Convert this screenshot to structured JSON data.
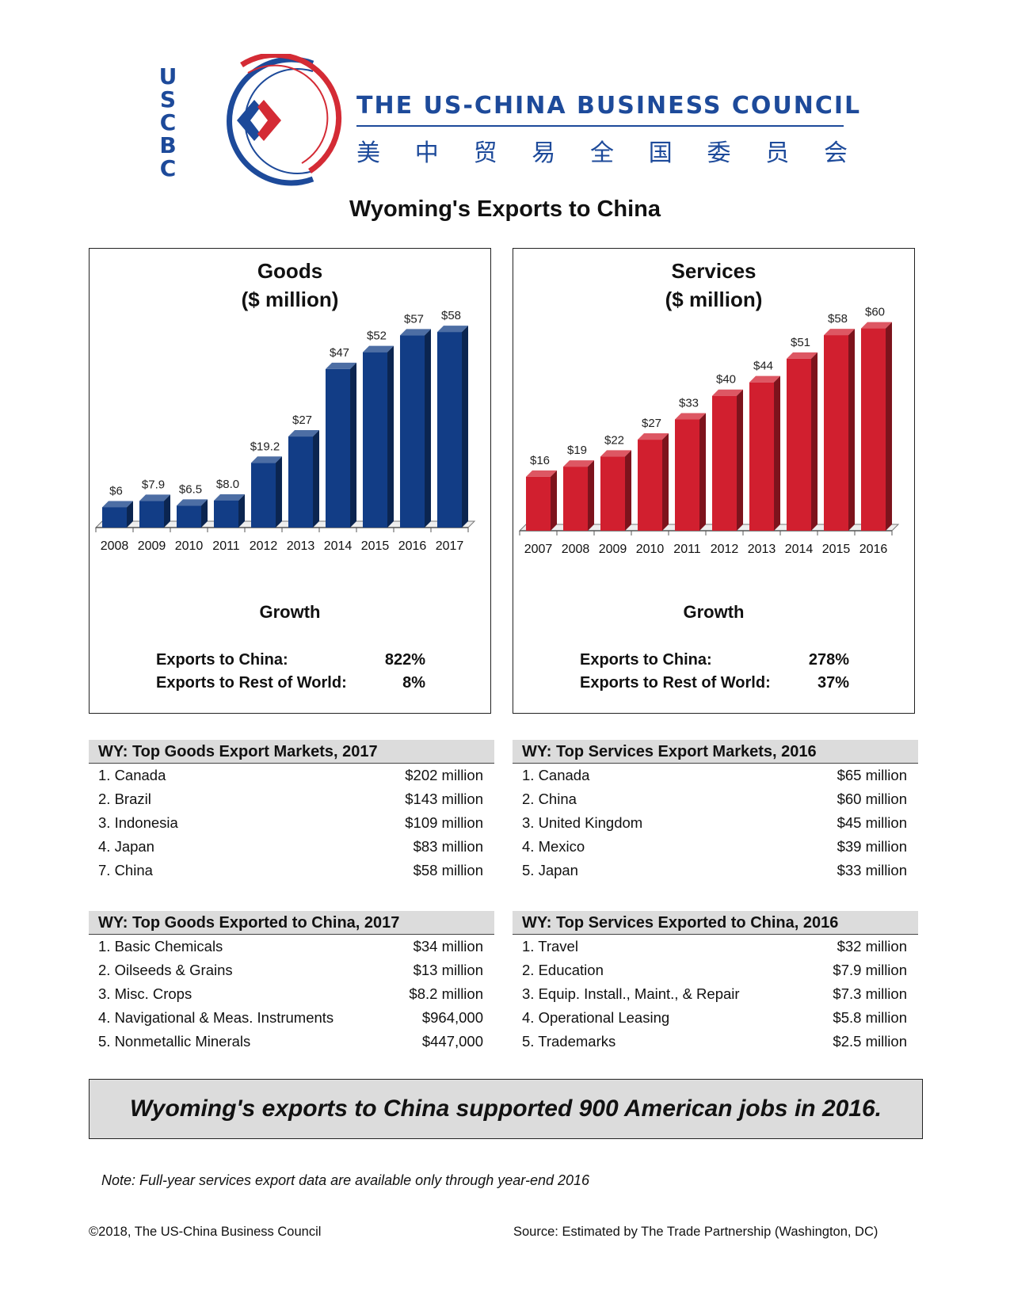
{
  "header": {
    "logo_letters": [
      "U",
      "S",
      "C",
      "B",
      "C"
    ],
    "council_name": "THE US-CHINA BUSINESS COUNCIL",
    "council_name_cn": [
      "美",
      "中",
      "贸",
      "易",
      "全",
      "国",
      "委",
      "员",
      "会"
    ],
    "colors": {
      "brand_blue": "#1d4a9a",
      "brand_red": "#d42b35"
    }
  },
  "title": "Wyoming's Exports to China",
  "goods": {
    "title_line1": "Goods",
    "title_line2": "($ million)",
    "growth_title": "Growth",
    "growth": [
      {
        "label": "Exports to China:",
        "value": "822%"
      },
      {
        "label": "Exports to Rest of World:",
        "value": "8%"
      }
    ]
  },
  "services": {
    "title_line1": "Services",
    "title_line2": "($ million)",
    "growth_title": "Growth",
    "growth": [
      {
        "label": "Exports to China:",
        "value": "278%"
      },
      {
        "label": "Exports to Rest of World:",
        "value": "37%"
      }
    ]
  },
  "chart_data": [
    {
      "type": "bar",
      "title": "Goods ($ million)",
      "categories": [
        "2008",
        "2009",
        "2010",
        "2011",
        "2012",
        "2013",
        "2014",
        "2015",
        "2016",
        "2017"
      ],
      "values": [
        6,
        7.9,
        6.5,
        8.0,
        19.2,
        27,
        47,
        52,
        57,
        58
      ],
      "data_labels": [
        "$6",
        "$7.9",
        "$6.5",
        "$8.0",
        "$19.2",
        "$27",
        "$47",
        "$52",
        "$57",
        "$58"
      ],
      "ylim": [
        0,
        70
      ],
      "grid": false,
      "color": "#123d86"
    },
    {
      "type": "bar",
      "title": "Services ($ million)",
      "categories": [
        "2007",
        "2008",
        "2009",
        "2010",
        "2011",
        "2012",
        "2013",
        "2014",
        "2015",
        "2016"
      ],
      "values": [
        16,
        19,
        22,
        27,
        33,
        40,
        44,
        51,
        58,
        60
      ],
      "data_labels": [
        "$16",
        "$19",
        "$22",
        "$27",
        "$33",
        "$40",
        "$44",
        "$51",
        "$58",
        "$60"
      ],
      "ylim": [
        0,
        70
      ],
      "grid": false,
      "color": "#d11f2f"
    }
  ],
  "tables": {
    "goods_markets": {
      "heading": "WY: Top Goods Export Markets, 2017",
      "rows": [
        {
          "name": "1. Canada",
          "amount": "$202 million"
        },
        {
          "name": "2. Brazil",
          "amount": "$143 million"
        },
        {
          "name": "3. Indonesia",
          "amount": "$109 million"
        },
        {
          "name": "4. Japan",
          "amount": "$83 million"
        },
        {
          "name": "7. China",
          "amount": "$58 million"
        }
      ]
    },
    "services_markets": {
      "heading": "WY: Top Services Export Markets, 2016",
      "rows": [
        {
          "name": "1. Canada",
          "amount": "$65 million"
        },
        {
          "name": "2. China",
          "amount": "$60 million"
        },
        {
          "name": "3. United Kingdom",
          "amount": "$45 million"
        },
        {
          "name": "4. Mexico",
          "amount": "$39 million"
        },
        {
          "name": "5. Japan",
          "amount": "$33 million"
        }
      ]
    },
    "goods_china": {
      "heading": "WY: Top Goods Exported to China, 2017",
      "rows": [
        {
          "name": "1. Basic Chemicals",
          "amount": "$34 million"
        },
        {
          "name": "2. Oilseeds & Grains",
          "amount": "$13 million"
        },
        {
          "name": "3. Misc. Crops",
          "amount": "$8.2 million"
        },
        {
          "name": "4. Navigational & Meas. Instruments",
          "amount": "$964,000"
        },
        {
          "name": "5. Nonmetallic Minerals",
          "amount": "$447,000"
        }
      ]
    },
    "services_china": {
      "heading": "WY: Top Services Exported to China, 2016",
      "rows": [
        {
          "name": "1. Travel",
          "amount": "$32 million"
        },
        {
          "name": "2. Education",
          "amount": "$7.9 million"
        },
        {
          "name": "3. Equip. Install., Maint., & Repair",
          "amount": "$7.3 million"
        },
        {
          "name": "4. Operational Leasing",
          "amount": "$5.8 million"
        },
        {
          "name": "5. Trademarks",
          "amount": "$2.5 million"
        }
      ]
    }
  },
  "jobs_statement": "Wyoming's exports to China supported 900 American jobs in 2016.",
  "note": "Note: Full-year services export data are available only through year-end 2016",
  "footer": {
    "copyright": "©2018, The US-China Business Council",
    "source": "Source: Estimated by The Trade Partnership (Washington, DC)"
  }
}
